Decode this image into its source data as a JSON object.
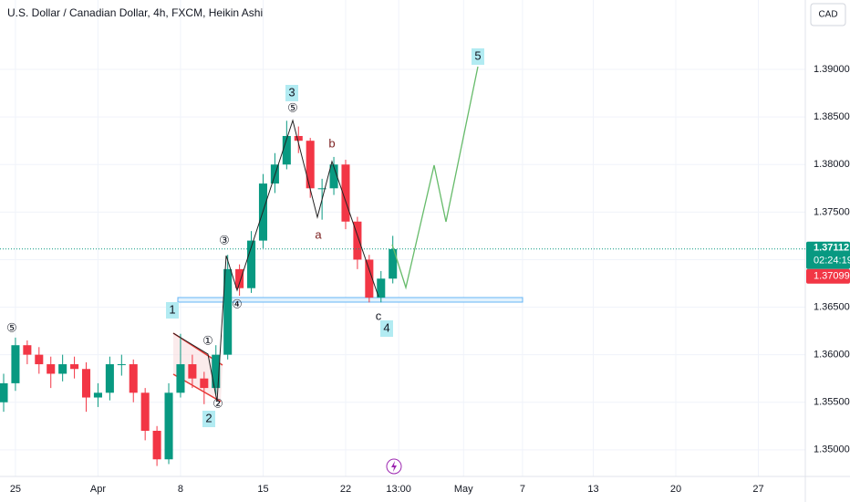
{
  "chart_data": {
    "type": "candlestick",
    "title": "U.S. Dollar / Canadian Dollar, 4h, FXCM, Heikin Ashi",
    "currency": "CAD",
    "x": [
      -1,
      0,
      1,
      2,
      3,
      4,
      5,
      6,
      7,
      8,
      9,
      10,
      11,
      12,
      13,
      14,
      15,
      16,
      17,
      18,
      19,
      20,
      21,
      22,
      23,
      24,
      25,
      26,
      27,
      28,
      29,
      30,
      31,
      32
    ],
    "open": [
      1.355,
      1.357,
      1.361,
      1.36,
      1.359,
      1.358,
      1.359,
      1.3585,
      1.3555,
      1.356,
      1.359,
      1.359,
      1.356,
      1.352,
      1.349,
      1.356,
      1.359,
      1.3575,
      1.3565,
      1.36,
      1.369,
      1.367,
      1.372,
      1.378,
      1.38,
      1.383,
      1.3825,
      1.3775,
      1.3775,
      1.38,
      1.374,
      1.37,
      1.366,
      1.368
    ],
    "high": [
      1.358,
      1.3618,
      1.3615,
      1.3608,
      1.3598,
      1.36,
      1.3598,
      1.3592,
      1.357,
      1.3598,
      1.36,
      1.3595,
      1.3565,
      1.3525,
      1.357,
      1.3622,
      1.36,
      1.3582,
      1.361,
      1.3705,
      1.3695,
      1.373,
      1.379,
      1.3812,
      1.3846,
      1.384,
      1.3828,
      1.3785,
      1.3808,
      1.3805,
      1.3745,
      1.3705,
      1.3688,
      1.3725
    ],
    "low": [
      1.354,
      1.3562,
      1.359,
      1.358,
      1.3565,
      1.3572,
      1.3575,
      1.354,
      1.3545,
      1.3552,
      1.3578,
      1.355,
      1.351,
      1.3483,
      1.3485,
      1.3555,
      1.3565,
      1.3548,
      1.3558,
      1.3595,
      1.3662,
      1.3665,
      1.3712,
      1.377,
      1.3795,
      1.3812,
      1.3765,
      1.3742,
      1.3768,
      1.3732,
      1.369,
      1.3655,
      1.3655,
      1.3675
    ],
    "close": [
      1.357,
      1.361,
      1.36,
      1.359,
      1.358,
      1.359,
      1.3585,
      1.3555,
      1.356,
      1.359,
      1.359,
      1.356,
      1.352,
      1.349,
      1.356,
      1.359,
      1.3575,
      1.3565,
      1.36,
      1.369,
      1.367,
      1.372,
      1.378,
      1.38,
      1.383,
      1.3825,
      1.3775,
      1.3775,
      1.38,
      1.374,
      1.37,
      1.366,
      1.368,
      1.3711
    ],
    "up_color": "#089981",
    "down_color": "#f23645",
    "xlim": [
      -1.31,
      66.98
    ],
    "xticks": [
      {
        "value": 0,
        "label": "25"
      },
      {
        "value": 7,
        "label": "Apr"
      },
      {
        "value": 14,
        "label": "8"
      },
      {
        "value": 21,
        "label": "15"
      },
      {
        "value": 28,
        "label": "22"
      },
      {
        "value": 32.5,
        "label": "13:00"
      },
      {
        "value": 38,
        "label": "May"
      },
      {
        "value": 43,
        "label": "7"
      },
      {
        "value": 49,
        "label": "13"
      },
      {
        "value": 56,
        "label": "20"
      },
      {
        "value": 63,
        "label": "27"
      }
    ],
    "ylim": [
      1.3472,
      1.3973
    ],
    "yticks": [
      {
        "value": 1.35,
        "label": "1.35000"
      },
      {
        "value": 1.355,
        "label": "1.35500"
      },
      {
        "value": 1.36,
        "label": "1.36000"
      },
      {
        "value": 1.365,
        "label": "1.36500"
      },
      {
        "value": 1.37,
        "label": "1.37000"
      },
      {
        "value": 1.375,
        "label": "1.37500"
      },
      {
        "value": 1.38,
        "label": "1.38000"
      },
      {
        "value": 1.385,
        "label": "1.38500"
      },
      {
        "value": 1.39,
        "label": "1.39000"
      }
    ],
    "grid": true,
    "last_price": 1.37112,
    "countdown": "02:24:19",
    "bid_price": 1.37099,
    "annotations": [
      "5",
      "3",
      "⑤",
      "b",
      "a",
      "③",
      "④",
      "1",
      "c",
      "4",
      "①",
      "⑤",
      "②",
      "2"
    ]
  }
}
